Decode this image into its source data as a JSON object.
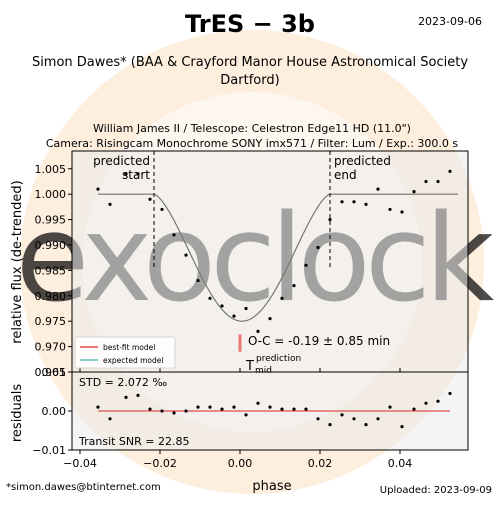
{
  "header": {
    "title": "TrES − 3b",
    "date": "2023-09-06",
    "observer_line": "Simon Dawes* (BAA & Crayford Manor House Astronomical Society",
    "observer_line2": "Dartford)",
    "equipment_line1": "William James II / Telescope: Celestron Edge11 HD (11.0\")",
    "equipment_line2": "Camera: Risingcam Monochrome SONY imx571 / Filter: Lum / Exp.: 300.0 s"
  },
  "footer": {
    "email": "*simon.dawes@btinternet.com",
    "uploaded": "Uploaded: 2023-09-09"
  },
  "watermark": {
    "text": "exoclock",
    "color": "#fbe3c2"
  },
  "colors": {
    "best_fit": "#d62728",
    "expected": "#3cb4a8",
    "points": "#000000",
    "prediction_marker": "#e8796e",
    "panel_bg": "#ebebeb"
  },
  "annotations": {
    "predicted_start": [
      "predicted",
      "start"
    ],
    "predicted_end": [
      "predicted",
      "end"
    ],
    "oc": "O-C = -0.19 ± 0.85 min",
    "tmid": "T",
    "tmid_sub": "mid",
    "tmid_sup": "prediction",
    "std": "STD = 2.072 ‰",
    "snr": "Transit SNR = 22.85"
  },
  "chart_data": {
    "type": "scatter",
    "xlabel": "phase",
    "top_panel": {
      "ylabel": "relative flux (de-trended)",
      "xlim": [
        -0.042,
        0.057
      ],
      "ylim": [
        0.965,
        1.0085
      ],
      "yticks": [
        0.97,
        0.975,
        0.98,
        0.985,
        0.99,
        0.995,
        1.0,
        1.005
      ],
      "ytick_labels": [
        "0.970",
        "0.975",
        "0.980",
        "0.985",
        "0.990",
        "0.995",
        "1.000",
        "1.005"
      ],
      "predicted_start": -0.0215,
      "predicted_end": 0.0225,
      "tmid_prediction": 0.0,
      "legend": [
        "best-fit model",
        "expected model"
      ],
      "legend_placement": "lower-left",
      "points": {
        "x": [
          -0.0355,
          -0.0325,
          -0.0285,
          -0.0255,
          -0.0225,
          -0.0195,
          -0.0165,
          -0.0135,
          -0.0105,
          -0.0075,
          -0.0045,
          -0.0015,
          0.0015,
          0.0045,
          0.0075,
          0.0105,
          0.0135,
          0.0165,
          0.0195,
          0.0225,
          0.0255,
          0.0285,
          0.0315,
          0.0345,
          0.0375,
          0.0405,
          0.0435,
          0.0465,
          0.0495,
          0.0525
        ],
        "y": [
          1.001,
          0.998,
          1.004,
          1.004,
          0.999,
          0.997,
          0.992,
          0.988,
          0.983,
          0.9795,
          0.978,
          0.976,
          0.9775,
          0.973,
          0.9755,
          0.9795,
          0.982,
          0.986,
          0.9895,
          0.995,
          0.9985,
          0.9985,
          0.998,
          1.001,
          0.997,
          0.9965,
          1.0005,
          1.0025,
          1.0025,
          1.0045
        ]
      },
      "best_fit_model": {
        "t_start": -0.0215,
        "t_end": 0.0225,
        "depth": 0.025,
        "center": 0.0005
      },
      "expected_model": {
        "t_start": -0.0215,
        "t_end": 0.0225,
        "depth": 0.025,
        "center": 0.0005
      }
    },
    "bottom_panel": {
      "ylabel": "residuals",
      "ylim": [
        -0.01,
        0.01
      ],
      "yticks": [
        -0.01,
        0.0,
        0.01
      ],
      "ytick_labels": [
        "−0.01",
        "0.00",
        "0.01"
      ],
      "points": {
        "x": [
          -0.0355,
          -0.0325,
          -0.0285,
          -0.0255,
          -0.0225,
          -0.0195,
          -0.0165,
          -0.0135,
          -0.0105,
          -0.0075,
          -0.0045,
          -0.0015,
          0.0015,
          0.0045,
          0.0075,
          0.0105,
          0.0135,
          0.0165,
          0.0195,
          0.0225,
          0.0255,
          0.0285,
          0.0315,
          0.0345,
          0.0375,
          0.0405,
          0.0435,
          0.0465,
          0.0495,
          0.0525
        ],
        "y": [
          0.001,
          -0.002,
          0.0035,
          0.004,
          0.0005,
          0.0,
          -0.0005,
          0.0,
          0.001,
          0.001,
          0.0005,
          0.001,
          -0.001,
          0.002,
          0.001,
          0.0005,
          0.0005,
          0.0005,
          -0.002,
          -0.0035,
          -0.001,
          -0.002,
          -0.0035,
          -0.002,
          0.001,
          -0.004,
          0.0005,
          0.002,
          0.0025,
          0.0045
        ]
      }
    },
    "xticks": [
      -0.04,
      -0.02,
      0.0,
      0.02,
      0.04
    ],
    "xtick_labels": [
      "−0.04",
      "−0.02",
      "0.00",
      "0.02",
      "0.04"
    ]
  }
}
